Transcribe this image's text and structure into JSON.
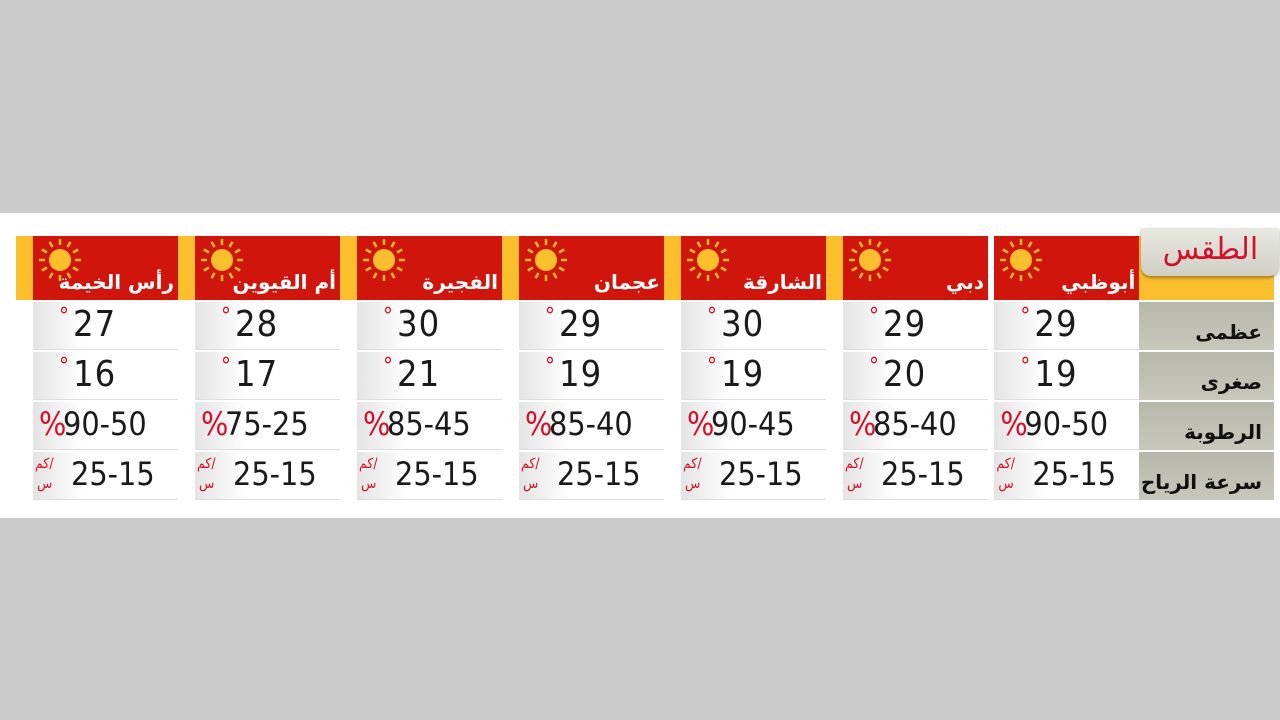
{
  "title": "الطقس",
  "row_labels": {
    "max": "عظمى",
    "min": "صغرى",
    "humidity": "الرطوبة",
    "wind": "سرعة الرياح"
  },
  "units": {
    "degree": "°",
    "percent": "%",
    "wind_top": "كم/",
    "wind_bottom": "س"
  },
  "colors": {
    "header_red": "#d0150c",
    "accent_yellow": "#fbbf2e",
    "title_red": "#d3102a"
  },
  "weather_icon": "sun-icon",
  "cities": [
    {
      "name": "أبوظبي",
      "max": "29",
      "min": "19",
      "humidity": "90-50",
      "wind": "25-15"
    },
    {
      "name": "دبي",
      "max": "29",
      "min": "20",
      "humidity": "85-40",
      "wind": "25-15"
    },
    {
      "name": "الشارقة",
      "max": "30",
      "min": "19",
      "humidity": "90-45",
      "wind": "25-15"
    },
    {
      "name": "عجمان",
      "max": "29",
      "min": "19",
      "humidity": "85-40",
      "wind": "25-15"
    },
    {
      "name": "الفجيرة",
      "max": "30",
      "min": "21",
      "humidity": "85-45",
      "wind": "25-15"
    },
    {
      "name": "أم القيوين",
      "max": "28",
      "min": "17",
      "humidity": "75-25",
      "wind": "25-15"
    },
    {
      "name": "رأس الخيمة",
      "max": "27",
      "min": "16",
      "humidity": "90-50",
      "wind": "25-15"
    }
  ]
}
